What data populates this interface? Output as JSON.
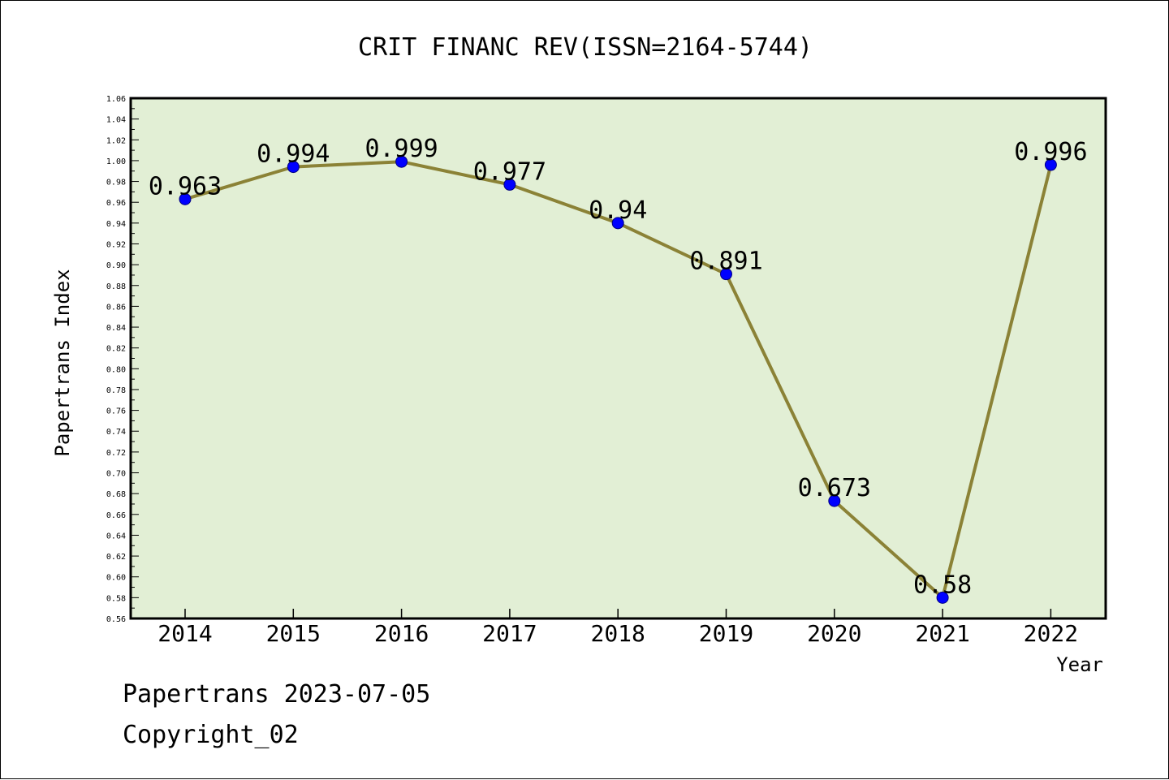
{
  "chart_data": {
    "type": "line",
    "title": "CRIT FINANC REV(ISSN=2164-5744)",
    "xlabel": "Year",
    "ylabel": "Papertrans Index",
    "categories": [
      "2014",
      "2015",
      "2016",
      "2017",
      "2018",
      "2019",
      "2020",
      "2021",
      "2022"
    ],
    "series": [
      {
        "values": [
          0.963,
          0.994,
          0.999,
          0.977,
          0.94,
          0.891,
          0.673,
          0.58,
          0.996
        ],
        "data_labels": [
          "0.963",
          "0.994",
          "0.999",
          "0.977",
          "0.94",
          "0.891",
          "0.673",
          "0.58",
          "0.996"
        ]
      }
    ],
    "ylim": [
      0.56,
      1.06
    ],
    "y_ticks": [
      "0.56",
      "0.58",
      "0.60",
      "0.62",
      "0.64",
      "0.66",
      "0.68",
      "0.70",
      "0.72",
      "0.74",
      "0.76",
      "0.78",
      "0.80",
      "0.82",
      "0.84",
      "0.86",
      "0.88",
      "0.90",
      "0.92",
      "0.94",
      "0.96",
      "0.98",
      "1.00",
      "1.02",
      "1.04",
      "1.06"
    ],
    "grid": false,
    "colors": {
      "plot_background": "#e2efd5",
      "line": "#8b8236",
      "marker": "#0000ff",
      "axis": "#000000"
    }
  },
  "footer": {
    "line1": "Papertrans 2023-07-05",
    "line2": "Copyright_02"
  }
}
